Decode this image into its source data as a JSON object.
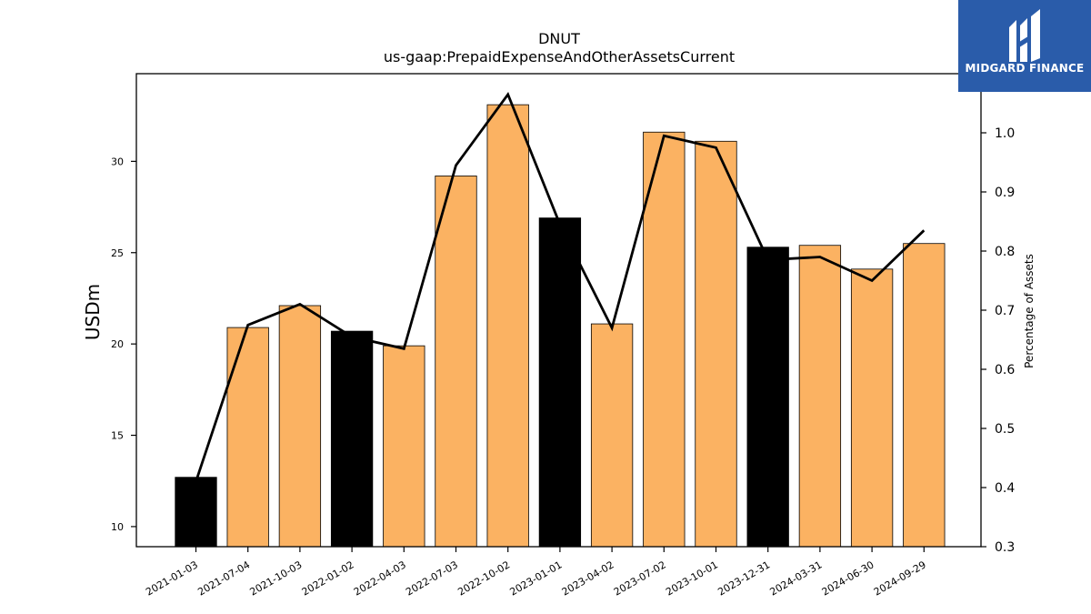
{
  "chart_data": {
    "type": "bar",
    "title": "DNUT",
    "subtitle": "us-gaap:PrepaidExpenseAndOtherAssetsCurrent",
    "ylabel": "USDm",
    "y2label": "Percentage of Assets",
    "categories": [
      "2021-01-03",
      "2021-07-04",
      "2021-10-03",
      "2022-01-02",
      "2022-04-03",
      "2022-07-03",
      "2022-10-02",
      "2023-01-01",
      "2023-04-02",
      "2023-07-02",
      "2023-10-01",
      "2023-12-31",
      "2024-03-31",
      "2024-06-30",
      "2024-09-29"
    ],
    "series": [
      {
        "type": "bar",
        "values": [
          12.7,
          20.9,
          22.1,
          20.7,
          19.9,
          29.2,
          33.1,
          26.9,
          21.1,
          31.6,
          31.1,
          25.3,
          25.4,
          24.1,
          25.5
        ],
        "highlight": [
          true,
          false,
          false,
          true,
          false,
          false,
          false,
          true,
          false,
          false,
          false,
          true,
          false,
          false,
          false
        ],
        "color": "#fbb262",
        "highlight_color": "#000000"
      },
      {
        "type": "line",
        "axis": "right",
        "values": [
          0.41,
          0.675,
          0.71,
          0.655,
          0.635,
          0.945,
          1.065,
          0.845,
          0.67,
          0.995,
          0.975,
          0.785,
          0.79,
          0.75,
          0.835
        ],
        "color": "#000000"
      }
    ],
    "ylim": [
      8.9,
      34.8
    ],
    "y2lim": [
      0.3,
      1.1
    ],
    "yticks": [
      10,
      15,
      20,
      25,
      30
    ],
    "y2ticks": [
      0.3,
      0.4,
      0.5,
      0.6,
      0.7,
      0.8,
      0.9,
      1.0
    ],
    "y2ticklabels": [
      "0.3",
      "0.4",
      "0.5",
      "0.6",
      "0.7",
      "0.8",
      "0.9",
      "1.0"
    ],
    "grid": false
  },
  "logo": {
    "text": "MIDGARD FINANCE",
    "color": "#2a5caa"
  }
}
